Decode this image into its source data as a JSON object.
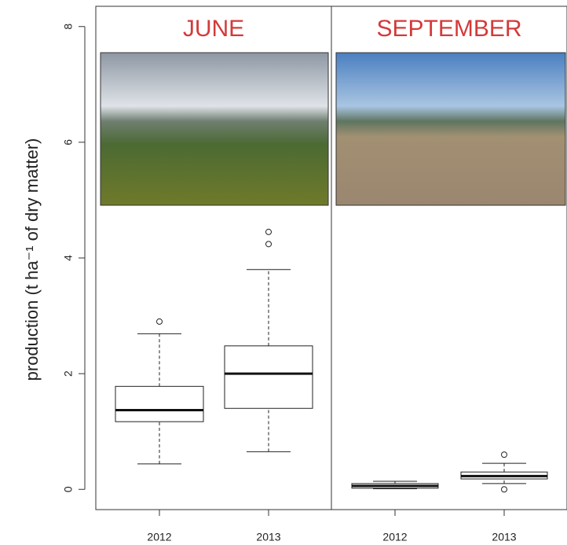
{
  "chart_data": {
    "type": "box",
    "ylabel": "production (t ha⁻¹ of dry matter)",
    "ylim": [
      -0.35,
      8.35
    ],
    "yticks": [
      0,
      2,
      4,
      6,
      8
    ],
    "panels": [
      {
        "title": "JUNE",
        "categories": [
          "2012",
          "2013"
        ],
        "boxes": [
          {
            "low": 0.44,
            "q1": 1.17,
            "median": 1.37,
            "q3": 1.78,
            "high": 2.69,
            "outliers": [
              2.9
            ]
          },
          {
            "low": 0.65,
            "q1": 1.4,
            "median": 2.0,
            "q3": 2.48,
            "high": 3.8,
            "outliers": [
              4.24,
              4.45
            ]
          }
        ]
      },
      {
        "title": "SEPTEMBER",
        "categories": [
          "2012",
          "2013"
        ],
        "boxes": [
          {
            "low": 0.01,
            "q1": 0.02,
            "median": 0.06,
            "q3": 0.1,
            "high": 0.14,
            "outliers": []
          },
          {
            "low": 0.1,
            "q1": 0.18,
            "median": 0.23,
            "q3": 0.3,
            "high": 0.45,
            "outliers": [
              0.6,
              0.0
            ]
          }
        ]
      }
    ]
  }
}
